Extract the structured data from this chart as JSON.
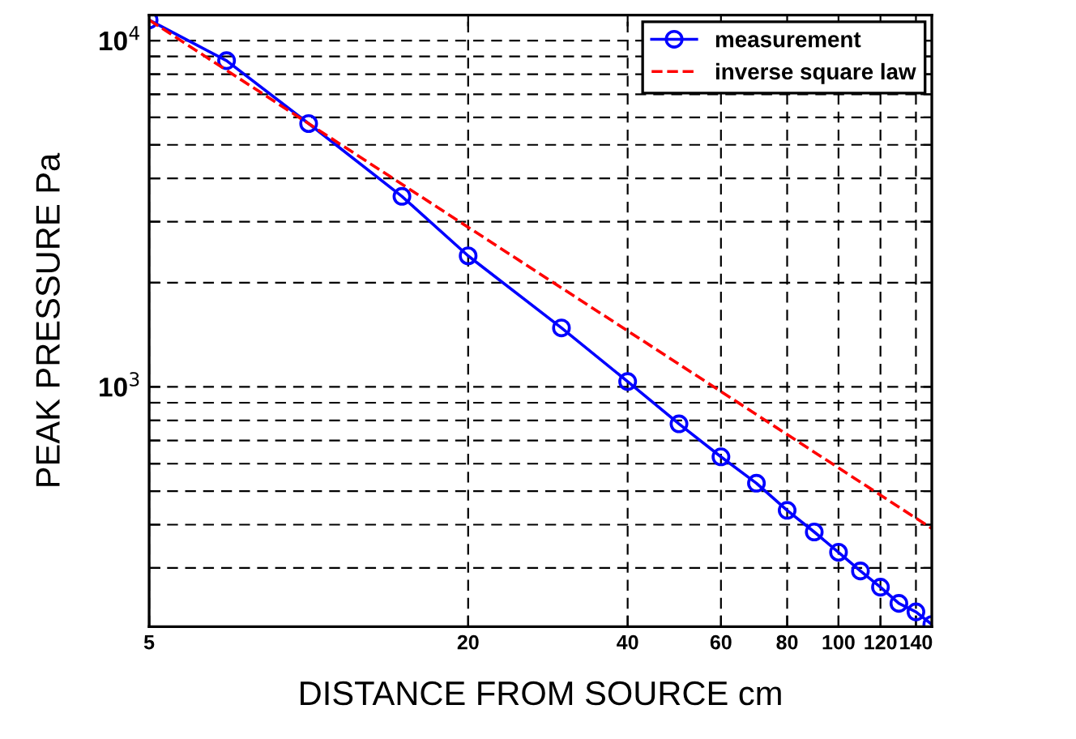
{
  "chart_data": {
    "type": "line",
    "xlabel": "DISTANCE FROM SOURCE cm",
    "ylabel": "PEAK PRESSURE Pa",
    "log": "xy",
    "grid": true,
    "legend": "top right",
    "xlim": [
      5,
      150
    ],
    "xticks": [
      5,
      20,
      40,
      60,
      80,
      100,
      120,
      140
    ],
    "ylim": [
      203,
      11850
    ],
    "yticks": [
      {
        "value": 300,
        "label": null
      },
      {
        "value": 400,
        "label": null
      },
      {
        "value": 500,
        "label": null
      },
      {
        "value": 600,
        "label": null
      },
      {
        "value": 700,
        "label": null
      },
      {
        "value": 800,
        "label": null
      },
      {
        "value": 900,
        "label": null
      },
      {
        "value": 1000,
        "label": "10$^{3}$"
      },
      {
        "value": 2000,
        "label": null
      },
      {
        "value": 3000,
        "label": null
      },
      {
        "value": 4000,
        "label": null
      },
      {
        "value": 5000,
        "label": null
      },
      {
        "value": 6000,
        "label": null
      },
      {
        "value": 7000,
        "label": null
      },
      {
        "value": 8000,
        "label": null
      },
      {
        "value": 9000,
        "label": null
      },
      {
        "value": 10000,
        "label": "10$^{4}$"
      }
    ],
    "series": [
      {
        "name": "measurement",
        "color": "#0000ff",
        "marker": "circle",
        "line_style": "solid",
        "x": [
          5,
          7,
          10,
          15,
          20,
          30,
          40,
          50,
          60,
          70,
          80,
          90,
          100,
          110,
          120,
          130,
          140,
          150
        ],
        "values": [
          11470,
          8750,
          5760,
          3550,
          2390,
          1480,
          1036,
          782,
          628,
          527,
          440,
          381,
          333,
          294,
          264,
          237,
          224,
          206
        ]
      },
      {
        "name": "inverse square law",
        "color": "#ff0000",
        "marker": "none",
        "line_style": "dashed",
        "x": [
          5,
          150
        ],
        "values": [
          11470,
          390
        ]
      }
    ]
  }
}
